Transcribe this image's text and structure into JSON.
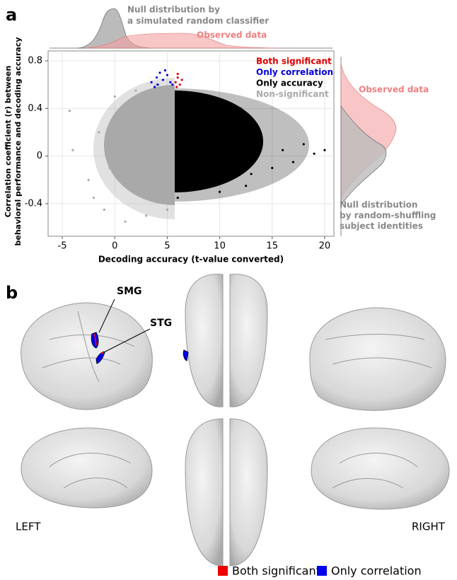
{
  "chart_data": {
    "type": "scatter",
    "xlabel": "Decoding accuracy (t-value converted)",
    "ylabel": [
      "Correlation coefficient (r) between",
      "behavioral performance and decoding accuracy"
    ],
    "xlim": [
      -6.35,
      20.88
    ],
    "ylim": [
      -0.673,
      0.883
    ],
    "xticks": [
      -5,
      0,
      5,
      10,
      15,
      20
    ],
    "yticks": [
      -0.4,
      0,
      0.4,
      0.8
    ],
    "grid": true,
    "legend": "upper right",
    "annotations": {
      "top_null": [
        "Null distribution by",
        "a simulated random classifier"
      ],
      "top_observed": "Observed data",
      "right_observed": "Observed data",
      "right_null": [
        "Null distribution",
        "by random-shuffling",
        "subject identities"
      ]
    },
    "series": [
      {
        "name": "Both significant",
        "color": "#e00000",
        "x": [
          5.8,
          6.0,
          6.2,
          6.4,
          6.0,
          5.9
        ],
        "values": [
          0.62,
          0.66,
          0.6,
          0.64,
          0.69,
          0.58
        ]
      },
      {
        "name": "Only correlation",
        "color": "#0000dd",
        "x": [
          3.5,
          4.0,
          4.3,
          4.6,
          5.0,
          5.3,
          4.1,
          4.8,
          3.8,
          5.5
        ],
        "values": [
          0.62,
          0.66,
          0.7,
          0.64,
          0.68,
          0.62,
          0.6,
          0.72,
          0.58,
          0.6
        ]
      },
      {
        "name": "Only accuracy",
        "color": "#000000",
        "x": [
          6,
          8,
          10,
          12,
          14,
          16,
          18,
          20,
          9,
          11,
          13,
          7,
          15,
          17,
          19,
          12.5
        ],
        "values": [
          -0.35,
          0.5,
          -0.3,
          0.4,
          0.1,
          0.05,
          0.1,
          0.05,
          0.1,
          0.2,
          -0.15,
          0.3,
          -0.1,
          -0.05,
          0.02,
          -0.25
        ]
      },
      {
        "name": "Non-significant",
        "color": "#a9a9a9",
        "x": [
          -4.3,
          -4.0,
          -2.5,
          -1.5,
          -1.0,
          0,
          1,
          2,
          3,
          4,
          5,
          1.5,
          3.5,
          -0.5,
          -2.0,
          4.5
        ],
        "values": [
          0.38,
          0.05,
          -0.2,
          0.2,
          -0.45,
          0.5,
          -0.55,
          0.55,
          -0.5,
          0.6,
          -0.45,
          0.1,
          0.2,
          -0.1,
          -0.35,
          -0.25
        ]
      }
    ]
  },
  "panel_labels": [
    "a",
    "b"
  ],
  "brain": {
    "regions": [
      "SMG",
      "STG"
    ],
    "sides": [
      "LEFT",
      "RIGHT"
    ],
    "legend": [
      {
        "name": "Both significant",
        "color": "#ee0000"
      },
      {
        "name": "Only correlation",
        "color": "#0000ee"
      }
    ]
  }
}
